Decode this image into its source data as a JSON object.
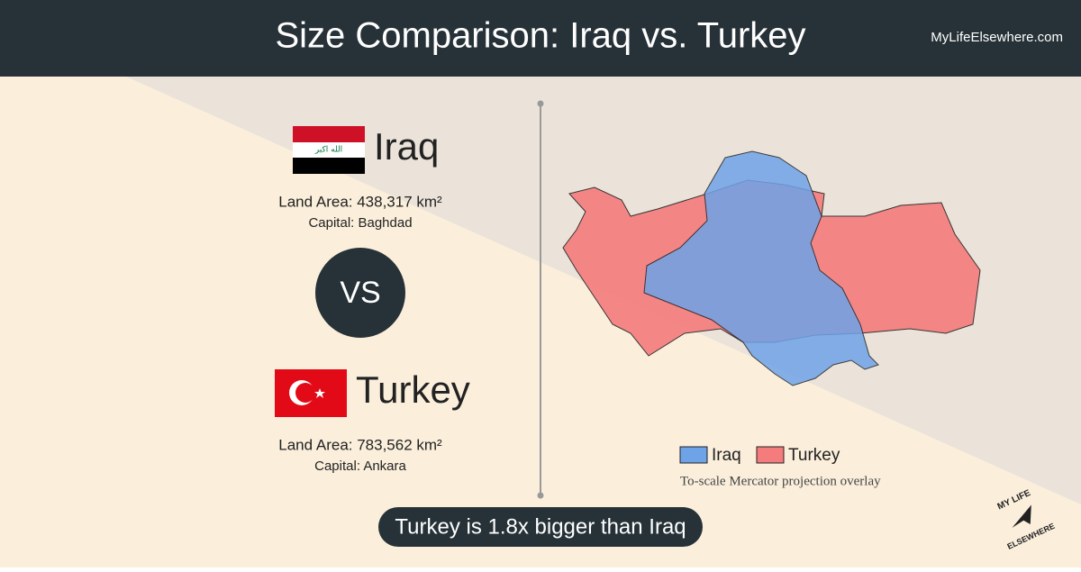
{
  "header": {
    "title": "Size Comparison: Iraq vs. Turkey",
    "site": "MyLifeElsewhere.com"
  },
  "countries": [
    {
      "name": "Iraq",
      "flag_text": "الله اكبر",
      "land_area": "Land Area: 438,317 km²",
      "capital": "Capital: Baghdad"
    },
    {
      "name": "Turkey",
      "land_area": "Land Area: 783,562 km²",
      "capital": "Capital: Ankara"
    }
  ],
  "vs": "VS",
  "legend": [
    {
      "name": "Iraq",
      "color": "#6fa3e8"
    },
    {
      "name": "Turkey",
      "color": "#f47c7c"
    }
  ],
  "map_note": "To-scale Mercator projection overlay",
  "summary": "Turkey is 1.8x bigger than Iraq",
  "logo": [
    "MY LIFE",
    "ELSEWHERE"
  ]
}
